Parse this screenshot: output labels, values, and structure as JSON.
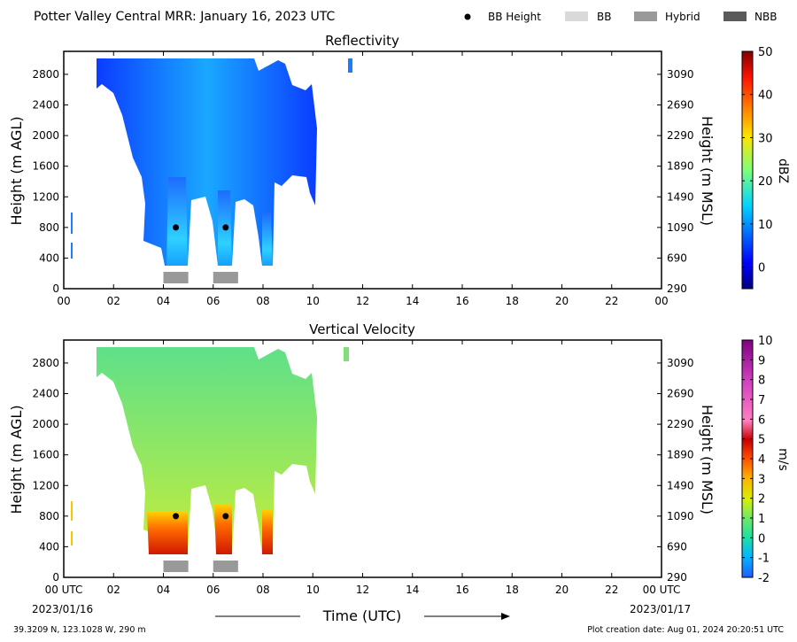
{
  "header": {
    "title": "Potter Valley Central MRR:  January 16, 2023 UTC",
    "legend": [
      {
        "label": "BB Height",
        "kind": "dot",
        "color": "#000000"
      },
      {
        "label": "BB",
        "kind": "box",
        "color": "#d9d9d9"
      },
      {
        "label": "Hybrid",
        "kind": "box",
        "color": "#999999"
      },
      {
        "label": "NBB",
        "kind": "box",
        "color": "#5a5a5a"
      }
    ]
  },
  "footer": {
    "location": "39.3209 N, 123.1028 W, 290 m",
    "created": "Plot creation date: Aug 01, 2024 20:20:51 UTC",
    "xlabel": "Time (UTC)",
    "start_tick": "00 UTC",
    "end_tick": "00 UTC",
    "start_date": "2023/01/16",
    "end_date": "2023/01/17"
  },
  "chart_data": [
    {
      "type": "heatmap",
      "title": "Reflectivity",
      "xlabel": "Time (UTC)",
      "ylabel": "Height (m AGL)",
      "ylabel_right": "Height (m MSL)",
      "xlim": [
        0,
        24
      ],
      "ylim": [
        0,
        3100
      ],
      "x_ticks": [
        "00",
        "02",
        "04",
        "06",
        "08",
        "10",
        "12",
        "14",
        "16",
        "18",
        "20",
        "22",
        "00"
      ],
      "y_ticks": [
        0,
        400,
        800,
        1200,
        1600,
        2000,
        2400,
        2800
      ],
      "y_ticks_right": [
        290,
        690,
        1090,
        1490,
        1890,
        2290,
        2690,
        3090
      ],
      "colorbar": {
        "label": "dBZ",
        "min": -5,
        "max": 50,
        "ticks": [
          0,
          10,
          20,
          30,
          40,
          50
        ],
        "palette": "jet"
      },
      "bb_height_points": [
        {
          "time": 4.5,
          "height": 800
        },
        {
          "time": 6.5,
          "height": 800
        }
      ],
      "bb_classification": [
        {
          "start": 4.0,
          "end": 5.0,
          "type": "Hybrid"
        },
        {
          "start": 6.0,
          "end": 7.0,
          "type": "Hybrid"
        }
      ]
    },
    {
      "type": "heatmap",
      "title": "Vertical Velocity",
      "xlabel": "Time (UTC)",
      "ylabel": "Height (m AGL)",
      "ylabel_right": "Height (m MSL)",
      "xlim": [
        0,
        24
      ],
      "ylim": [
        0,
        3100
      ],
      "x_ticks": [
        "00 UTC",
        "02",
        "04",
        "06",
        "08",
        "10",
        "12",
        "14",
        "16",
        "18",
        "20",
        "22",
        "00 UTC"
      ],
      "y_ticks": [
        0,
        400,
        800,
        1200,
        1600,
        2000,
        2400,
        2800
      ],
      "y_ticks_right": [
        290,
        690,
        1090,
        1490,
        1890,
        2290,
        2690,
        3090
      ],
      "colorbar": {
        "label": "m/s",
        "min": -2,
        "max": 10,
        "ticks": [
          -2,
          -1,
          0,
          1,
          2,
          3,
          4,
          5,
          6,
          7,
          8,
          9,
          10
        ],
        "palette": "velocity"
      },
      "bb_height_points": [
        {
          "time": 4.5,
          "height": 800
        },
        {
          "time": 6.5,
          "height": 800
        }
      ],
      "bb_classification": [
        {
          "start": 4.0,
          "end": 5.0,
          "type": "Hybrid"
        },
        {
          "start": 6.0,
          "end": 7.0,
          "type": "Hybrid"
        }
      ]
    }
  ]
}
